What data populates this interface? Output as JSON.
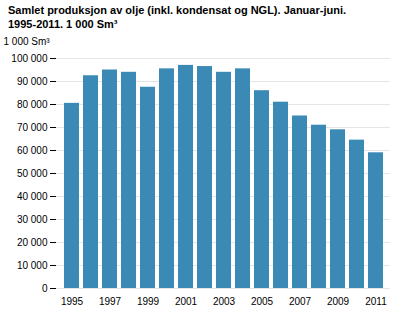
{
  "chart_data": {
    "type": "bar",
    "title": "Samlet produksjon av olje (inkl. kondensat og NGL). Januar-juni.",
    "subtitle": "1995-2011. 1 000 Sm³",
    "y_label": "1 000 Sm³",
    "categories": [
      "1995",
      null,
      "1997",
      null,
      "1999",
      null,
      "2001",
      null,
      "2003",
      null,
      "2005",
      null,
      "2007",
      null,
      "2009",
      null,
      "2011"
    ],
    "values": [
      80500,
      92500,
      95000,
      94000,
      87500,
      95500,
      97000,
      96500,
      94000,
      95500,
      86000,
      81000,
      75000,
      71000,
      69000,
      64500,
      59000
    ],
    "color": "#3a8ab5",
    "ylim": [
      0,
      100000
    ],
    "yticks": [
      0,
      {
        "value": 10000,
        "label": "10 000"
      },
      {
        "value": 20000,
        "label": "20 000"
      },
      {
        "value": 30000,
        "label": "30 000"
      },
      {
        "value": 40000,
        "label": "40 000"
      },
      {
        "value": 50000,
        "label": "50 000"
      },
      {
        "value": 60000,
        "label": "60 000"
      },
      {
        "value": 70000,
        "label": "70 000"
      },
      {
        "value": 80000,
        "label": "80 000"
      },
      {
        "value": 90000,
        "label": "90 000"
      },
      {
        "value": 100000,
        "label": "100 000"
      }
    ],
    "grid": true
  }
}
